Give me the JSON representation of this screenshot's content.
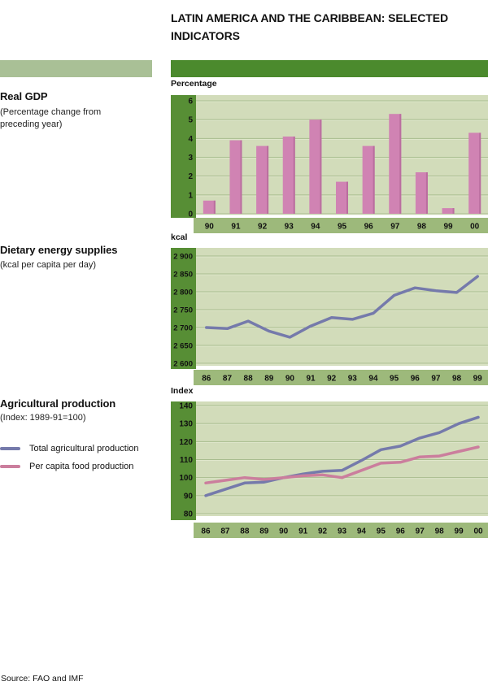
{
  "header": {
    "title_lines": [
      "LATIN AMERICA AND THE CARIBBEAN: SELECTED",
      "INDICATORS"
    ]
  },
  "source": "Source: FAO and IMF",
  "colors": {
    "header_dark": "#4b8a2d",
    "header_light": "#a9c096",
    "axis_band": "#578e35",
    "plot_bg": "#d2dcba",
    "grid": "#a8bd8e",
    "grid_hilight": "#e0e7cc",
    "tick_band": "#9db97b",
    "bar_pink": "#d083b3",
    "bar_pink_shade": "#ba6e9f",
    "line_blue": "#757aab",
    "line_pink": "#cb7e9d"
  },
  "sections": [
    {
      "heading": "Real GDP",
      "subheading": "(Percentage change from preceding year)",
      "unit_label": "Percentage"
    },
    {
      "heading": "Dietary energy supplies",
      "subheading": "(kcal per capita per day)",
      "unit_label": "kcal"
    },
    {
      "heading": "Agricultural production",
      "subheading": "(Index: 1989-91=100)",
      "unit_label": "Index",
      "legend": [
        {
          "label": "Total agricultural production",
          "color_key": "line_blue"
        },
        {
          "label": "Per capita food production",
          "color_key": "line_pink"
        }
      ]
    }
  ],
  "chart_data": [
    {
      "type": "bar",
      "name": "real-gdp",
      "title": "Real GDP (Percentage change from preceding year)",
      "ylabel": "Percentage",
      "categories": [
        "90",
        "91",
        "92",
        "93",
        "94",
        "95",
        "96",
        "97",
        "98",
        "99",
        "00"
      ],
      "values": [
        0.7,
        3.9,
        3.6,
        4.1,
        5.0,
        1.7,
        3.6,
        5.3,
        2.2,
        0.3,
        4.3
      ],
      "ylim": [
        0,
        6
      ],
      "ytick_step": 1,
      "yticks": [
        "6",
        "5",
        "4",
        "3",
        "2",
        "1",
        "0"
      ],
      "grid": true,
      "legend_position": "none",
      "bar_color_key": "bar_pink"
    },
    {
      "type": "line",
      "name": "dietary-energy-supplies",
      "title": "Dietary energy supplies (kcal per capita per day)",
      "ylabel": "kcal",
      "categories": [
        "86",
        "87",
        "88",
        "89",
        "90",
        "91",
        "92",
        "93",
        "94",
        "95",
        "96",
        "97",
        "98",
        "99"
      ],
      "series": [
        {
          "name": "kcal per capita per day",
          "color_key": "line_blue",
          "values": [
            2700,
            2697,
            2718,
            2690,
            2673,
            2704,
            2728,
            2723,
            2740,
            2790,
            2811,
            2803,
            2798,
            2843
          ]
        }
      ],
      "ylim": [
        2600,
        2900
      ],
      "ytick_step": 50,
      "yticks": [
        "2 900",
        "2 850",
        "2 800",
        "2 750",
        "2 700",
        "2 650",
        "2 600"
      ],
      "grid": true,
      "legend_position": "none"
    },
    {
      "type": "line",
      "name": "agricultural-production",
      "title": "Agricultural production (Index: 1989-91=100)",
      "ylabel": "Index",
      "categories": [
        "86",
        "87",
        "88",
        "89",
        "90",
        "91",
        "92",
        "93",
        "94",
        "95",
        "96",
        "97",
        "98",
        "99",
        "00"
      ],
      "series": [
        {
          "name": "Total agricultural production",
          "color_key": "line_blue",
          "values": [
            90,
            93.5,
            97,
            97.5,
            100,
            102,
            103.5,
            104,
            109.5,
            115.5,
            117.5,
            122,
            125,
            130,
            133.5
          ]
        },
        {
          "name": "Per capita food production",
          "color_key": "line_pink",
          "values": [
            97,
            98.5,
            100,
            99,
            100,
            101,
            101.5,
            100,
            104,
            108,
            108.5,
            111.5,
            112,
            114.5,
            117
          ]
        }
      ],
      "ylim": [
        80,
        140
      ],
      "ytick_step": 10,
      "yticks": [
        "140",
        "130",
        "120",
        "110",
        "100",
        "90",
        "80"
      ],
      "grid": true,
      "legend_position": "left"
    }
  ]
}
